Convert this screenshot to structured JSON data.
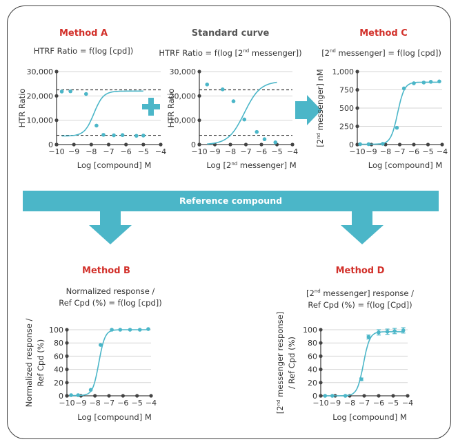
{
  "colors": {
    "title_red": "#d2302a",
    "title_gray": "#555555",
    "curve": "#4bb6c8",
    "arrow": "#4bb6c8",
    "axis": "#444444",
    "grid": "#d6d6d6"
  },
  "panels": {
    "a": {
      "title": "Method A",
      "formula_1": "HTRF Ratio = f(log [cpd])"
    },
    "std": {
      "title": "Standard curve",
      "formula_pre": "HTRF Ratio = f(log [2",
      "formula_sup": "nd",
      "formula_post": " messenger])"
    },
    "c": {
      "title": "Method C",
      "formula_pre": "[2",
      "formula_sup": "nd",
      "formula_post": " messenger] = f(log [cpd])"
    },
    "b": {
      "title": "Method B",
      "formula_1": "Normalized response  /",
      "formula_2": "Ref Cpd  (%)  = f(log [cpd])"
    },
    "d": {
      "title": "Method D",
      "formula_1_pre": "[2",
      "formula_1_sup": "nd",
      "formula_1_post": " messenger] response /",
      "formula_2": "Ref Cpd (%) = f(log [Cpd])"
    }
  },
  "band": {
    "label": "Reference compound"
  },
  "icons": {
    "plus": "plus-icon",
    "right_arrow": "right-arrow-icon",
    "down_arrows": "down-arrow-icon"
  },
  "chart_data": [
    {
      "id": "A",
      "type": "line",
      "xlabel": "Log [compound] M",
      "ylabel": "HTR Ratio",
      "xlim": [
        -10,
        -4
      ],
      "ylim": [
        0,
        30000
      ],
      "xticks": [
        "-10",
        "-9",
        "-8",
        "-7",
        "-6",
        "-5",
        "-4"
      ],
      "yticks": [
        {
          "v": 0,
          "label": "0"
        },
        {
          "v": 10000,
          "label": "10,000"
        },
        {
          "v": 20000,
          "label": "20,000"
        },
        {
          "v": 30000,
          "label": "30,000"
        }
      ],
      "grid": true,
      "dashed_lines": [
        22500,
        3800
      ],
      "points": [
        [
          -9.7,
          21800
        ],
        [
          -9.2,
          21900
        ],
        [
          -8.3,
          20800
        ],
        [
          -7.7,
          7800
        ],
        [
          -7.3,
          4000
        ],
        [
          -6.7,
          3800
        ],
        [
          -6.2,
          3900
        ],
        [
          -5.4,
          3600
        ],
        [
          -5.0,
          3700
        ]
      ],
      "curve": {
        "top": 22000,
        "bottom": 3500,
        "ec50": -7.85,
        "hill": 1.6,
        "x0": -9.7,
        "x1": -5.0
      }
    },
    {
      "id": "Standard",
      "type": "line",
      "xlabel_pre": "Log [2",
      "xlabel_sup": "nd",
      "xlabel_post": " messenger] M",
      "ylabel": "HTR Ratio",
      "xlim": [
        -10,
        -4
      ],
      "ylim": [
        0,
        30000
      ],
      "xticks": [
        "-10",
        "-9",
        "-8",
        "-7",
        "-6",
        "-5",
        "-4"
      ],
      "yticks": [
        {
          "v": 0,
          "label": "0"
        },
        {
          "v": 10000,
          "label": "10,000"
        },
        {
          "v": 20000,
          "label": "20,000"
        },
        {
          "v": 30000,
          "label": "30,000"
        }
      ],
      "grid": true,
      "dashed_lines": [
        22500,
        3800
      ],
      "points": [
        [
          -9.5,
          24700
        ],
        [
          -8.5,
          22700
        ],
        [
          -7.8,
          17800
        ],
        [
          -7.1,
          10300
        ],
        [
          -6.3,
          5200
        ],
        [
          -5.8,
          2200
        ],
        [
          -5.1,
          900
        ]
      ],
      "curve": {
        "top": 26000,
        "bottom": 0,
        "ec50": -7.1,
        "hill": 0.85,
        "x0": -9.5,
        "x1": -5.0
      }
    },
    {
      "id": "C",
      "type": "line",
      "xlabel": "Log [compound] M",
      "ylabel_pre": "[2",
      "ylabel_sup": "nd",
      "ylabel_post": " messenger] nM",
      "xlim": [
        -10,
        -4
      ],
      "ylim": [
        0,
        1000
      ],
      "xticks": [
        "-10",
        "-9",
        "-8",
        "-7",
        "-6",
        "-5",
        "-4"
      ],
      "yticks": [
        {
          "v": 0,
          "label": "0"
        },
        {
          "v": 250,
          "label": "250"
        },
        {
          "v": 500,
          "label": "500"
        },
        {
          "v": 750,
          "label": "750"
        },
        {
          "v": 1000,
          "label": "1,000"
        }
      ],
      "grid": true,
      "dashed_lines": [],
      "points": [
        [
          -9.8,
          5
        ],
        [
          -9.2,
          5
        ],
        [
          -8.2,
          10
        ],
        [
          -7.2,
          230
        ],
        [
          -6.7,
          770
        ],
        [
          -6.0,
          840
        ],
        [
          -5.3,
          850
        ],
        [
          -4.8,
          860
        ],
        [
          -4.2,
          865
        ]
      ],
      "curve": {
        "top": 855,
        "bottom": 5,
        "ec50": -7.15,
        "hill": 1.8,
        "x0": -9.8,
        "x1": -4.2
      }
    },
    {
      "id": "B",
      "type": "line",
      "xlabel": "Log [compound] M",
      "ylabel_1": "Normalized response /",
      "ylabel_2": "Ref Cpd  (%)",
      "xlim": [
        -10,
        -4
      ],
      "ylim": [
        0,
        100
      ],
      "xticks": [
        "-10",
        "-9",
        "-8",
        "-7",
        "-6",
        "-5",
        "-4"
      ],
      "yticks": [
        {
          "v": 0,
          "label": "0"
        },
        {
          "v": 20,
          "label": "20"
        },
        {
          "v": 40,
          "label": "40"
        },
        {
          "v": 60,
          "label": "60"
        },
        {
          "v": 80,
          "label": "80"
        },
        {
          "v": 100,
          "label": "100"
        }
      ],
      "grid": true,
      "dashed_lines": [],
      "points": [
        [
          -9.7,
          1
        ],
        [
          -9.2,
          1
        ],
        [
          -8.3,
          9
        ],
        [
          -7.6,
          77
        ],
        [
          -6.8,
          100
        ],
        [
          -6.2,
          100
        ],
        [
          -5.5,
          100
        ],
        [
          -4.8,
          100
        ],
        [
          -4.2,
          101
        ]
      ],
      "curve": {
        "top": 100,
        "bottom": 0.5,
        "ec50": -7.72,
        "hill": 2.0,
        "x0": -9.7,
        "x1": -4.2
      }
    },
    {
      "id": "D",
      "type": "line",
      "xlabel": "Log [compound] M",
      "ylabel_1_pre": "[2",
      "ylabel_1_sup": "nd",
      "ylabel_1_post": " messenger response]",
      "ylabel_2": "/ Ref Cpd (%)",
      "xlim": [
        -10,
        -4
      ],
      "ylim": [
        0,
        100
      ],
      "xticks": [
        "-10",
        "-9",
        "-8",
        "-7",
        "-6",
        "-5",
        "-4"
      ],
      "yticks": [
        {
          "v": 0,
          "label": "0"
        },
        {
          "v": 20,
          "label": "20"
        },
        {
          "v": 40,
          "label": "40"
        },
        {
          "v": 60,
          "label": "60"
        },
        {
          "v": 80,
          "label": "80"
        },
        {
          "v": 100,
          "label": "100"
        }
      ],
      "grid": true,
      "dashed_lines": [],
      "points": [
        [
          -9.7,
          0
        ],
        [
          -9.2,
          0
        ],
        [
          -8.3,
          0
        ],
        [
          -7.2,
          25
        ],
        [
          -6.7,
          89
        ],
        [
          -6.0,
          96
        ],
        [
          -5.4,
          97
        ],
        [
          -4.9,
          98
        ],
        [
          -4.3,
          99
        ]
      ],
      "errors": [
        0,
        0,
        0,
        2,
        3,
        4,
        4,
        4,
        4
      ],
      "curve": {
        "top": 97,
        "bottom": 0,
        "ec50": -7.05,
        "hill": 2.0,
        "x0": -9.7,
        "x1": -4.3
      }
    }
  ]
}
